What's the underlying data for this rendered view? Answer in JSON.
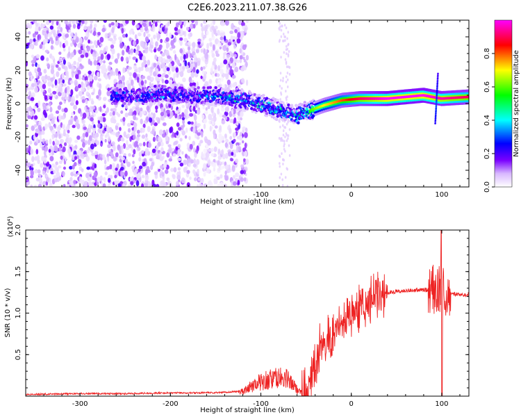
{
  "title": "C2E6.2023.211.07.38.G26",
  "colors": {
    "snr_line": "#ee2222",
    "spectral_scale": [
      "#ffffff",
      "#7a00ff",
      "#0000ff",
      "#00ffff",
      "#00ff00",
      "#ffff00",
      "#ff0000",
      "#ff00ff"
    ]
  },
  "chart_data": [
    {
      "type": "heatmap",
      "xlabel": "Height of straight line (km)",
      "ylabel": "Frequency (Hz)",
      "xlim": [
        -360,
        130
      ],
      "ylim": [
        -50,
        50
      ],
      "x_ticks": [
        {
          "value": -300,
          "label": "-300"
        },
        {
          "value": -200,
          "label": "-200"
        },
        {
          "value": -100,
          "label": "-100"
        },
        {
          "value": 0,
          "label": "0"
        },
        {
          "value": 100,
          "label": "100"
        }
      ],
      "y_ticks": [
        {
          "value": -40,
          "label": "-40"
        },
        {
          "value": -20,
          "label": "-20"
        },
        {
          "value": 0,
          "label": "0"
        },
        {
          "value": 20,
          "label": "20"
        },
        {
          "value": 40,
          "label": "40"
        }
      ],
      "colorbar": {
        "label": "Normalized spectral amplitude",
        "range": [
          0,
          1
        ],
        "ticks": [
          {
            "value": 0.0,
            "label": "0.0"
          },
          {
            "value": 0.2,
            "label": "0.2"
          },
          {
            "value": 0.4,
            "label": "0.4"
          },
          {
            "value": 0.6,
            "label": "0.6"
          },
          {
            "value": 0.8,
            "label": "0.8"
          }
        ]
      },
      "ridge": {
        "x": [
          -265,
          -240,
          -210,
          -180,
          -155,
          -125,
          -100,
          -80,
          -60,
          -50,
          -30,
          -10,
          10,
          40,
          80,
          100,
          130
        ],
        "y": [
          5,
          4,
          6,
          5,
          5,
          3,
          0,
          -4,
          -7,
          -5,
          -1,
          2,
          3,
          3,
          5,
          3,
          4
        ],
        "amplitude": [
          0.3,
          0.3,
          0.35,
          0.3,
          0.35,
          0.4,
          0.4,
          0.45,
          0.45,
          0.5,
          0.65,
          0.75,
          0.85,
          0.95,
          0.95,
          0.9,
          0.85
        ]
      }
    },
    {
      "type": "line",
      "xlabel": "Height of straight line (km)",
      "ylabel": "SNR (10 * v/v)",
      "y_multiplier": "(x10⁴)",
      "xlim": [
        -360,
        130
      ],
      "ylim": [
        0,
        2.0
      ],
      "x_ticks": [
        {
          "value": -300,
          "label": "-300"
        },
        {
          "value": -200,
          "label": "-200"
        },
        {
          "value": -100,
          "label": "-100"
        },
        {
          "value": 0,
          "label": "0"
        },
        {
          "value": 100,
          "label": "100"
        }
      ],
      "y_ticks": [
        {
          "value": 0.5,
          "label": "0.5"
        },
        {
          "value": 1.0,
          "label": "1.0"
        },
        {
          "value": 1.5,
          "label": "1.5"
        },
        {
          "value": 2.0,
          "label": "2.0"
        }
      ],
      "series": [
        {
          "x": [
            -360,
            -300,
            -250,
            -200,
            -150,
            -120,
            -110,
            -100,
            -90,
            -80,
            -70,
            -60,
            -50,
            -45,
            -40,
            -35,
            -30,
            -25,
            -20,
            -15,
            -10,
            -5,
            0,
            10,
            20,
            30,
            40,
            60,
            80,
            90,
            95,
            100,
            105,
            110,
            120,
            130
          ],
          "y": [
            0.02,
            0.03,
            0.03,
            0.04,
            0.04,
            0.06,
            0.12,
            0.18,
            0.2,
            0.22,
            0.2,
            0.08,
            0.03,
            0.15,
            0.35,
            0.55,
            0.62,
            0.7,
            0.75,
            0.85,
            0.9,
            0.95,
            1.0,
            1.08,
            1.15,
            1.22,
            1.25,
            1.27,
            1.28,
            1.28,
            1.3,
            1.28,
            1.25,
            1.24,
            1.22,
            1.22
          ]
        }
      ]
    }
  ]
}
